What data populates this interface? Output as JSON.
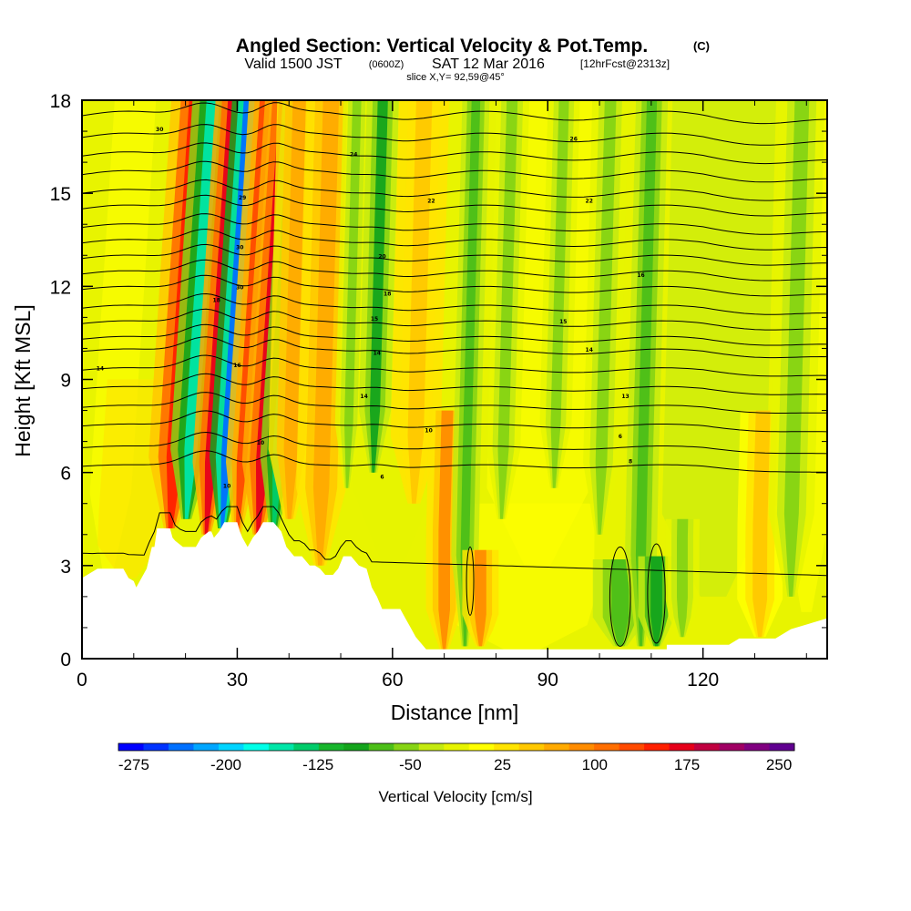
{
  "header": {
    "title": "Angled Section: Vertical Velocity & Pot.Temp.",
    "title_mark": "(C)",
    "valid_prefix": "Valid 1500 JST",
    "valid_zulu": "(0600Z)",
    "valid_date": "SAT 12 Mar 2016",
    "forecast": "[12hrFcst@2313z]",
    "slice": "slice X,Y= 92,59@45°"
  },
  "chart_data": {
    "type": "heatmap",
    "xlabel": "Distance [nm]",
    "ylabel": "Height [Kft MSL]",
    "xlim": [
      0,
      144
    ],
    "ylim": [
      0,
      18
    ],
    "x_ticks": [
      0,
      30,
      60,
      90,
      120
    ],
    "x_tick_labels": [
      "0",
      "30",
      "60",
      "90",
      "120"
    ],
    "y_ticks": [
      0,
      3,
      6,
      9,
      12,
      15,
      18
    ],
    "y_tick_labels": [
      "0",
      "3",
      "6",
      "9",
      "12",
      "15",
      "18"
    ],
    "colorbar": {
      "title": "Vertical Velocity [cm/s]",
      "min": -287.5,
      "max": 262.5,
      "tick_values": [
        -275,
        -200,
        -125,
        -50,
        25,
        100,
        175,
        250
      ],
      "tick_labels": [
        "-275",
        "-200",
        "-125",
        "-50",
        "25",
        "100",
        "175",
        "250"
      ],
      "colors": [
        "#0000ff",
        "#0033ff",
        "#0070ff",
        "#00a6ff",
        "#00d4ff",
        "#00ffe8",
        "#00e6a8",
        "#00cc6a",
        "#17b52c",
        "#14a41c",
        "#4cbf18",
        "#86d414",
        "#c4ea10",
        "#e6f400",
        "#ffff00",
        "#ffe400",
        "#ffc800",
        "#ffaa00",
        "#ff8c00",
        "#ff6e00",
        "#ff4a00",
        "#ff2000",
        "#e6001a",
        "#c00040",
        "#a00064",
        "#800080",
        "#600090"
      ]
    },
    "vertical_velocity_features": [
      {
        "x": 17,
        "top": 18,
        "bottom": 4.2,
        "w": 2.3,
        "value": 160
      },
      {
        "x": 20,
        "top": 18,
        "bottom": 4.5,
        "w": 1.8,
        "value": -160
      },
      {
        "x": 24,
        "top": 18,
        "bottom": 4.0,
        "w": 1.6,
        "value": 170
      },
      {
        "x": 27,
        "top": 18,
        "bottom": 4.2,
        "w": 1.5,
        "value": -240
      },
      {
        "x": 30,
        "top": 18,
        "bottom": 4.0,
        "w": 1.4,
        "value": 120
      },
      {
        "x": 34,
        "top": 18,
        "bottom": 4.0,
        "w": 1.8,
        "value": 170
      },
      {
        "x": 37,
        "top": 18,
        "bottom": 4.2,
        "w": 1.6,
        "value": -130
      },
      {
        "x": 40,
        "top": 18,
        "bottom": 4.5,
        "w": 2.0,
        "value": 60
      },
      {
        "x": 46,
        "top": 18,
        "bottom": 3.0,
        "w": 2.2,
        "value": 60
      },
      {
        "x": 51,
        "top": 18,
        "bottom": 5.5,
        "w": 1.2,
        "value": -50
      },
      {
        "x": 56,
        "top": 18,
        "bottom": 6.0,
        "w": 1.4,
        "value": -90
      },
      {
        "x": 64,
        "top": 18,
        "bottom": 5.0,
        "w": 2.2,
        "value": 55
      },
      {
        "x": 70,
        "top": 8.0,
        "bottom": 0.3,
        "w": 1.6,
        "value": 80
      },
      {
        "x": 74,
        "top": 18,
        "bottom": 0.4,
        "w": 1.2,
        "value": -70
      },
      {
        "x": 77,
        "top": 3.5,
        "bottom": 0.4,
        "w": 1.6,
        "value": 90
      },
      {
        "x": 81,
        "top": 18,
        "bottom": 4.5,
        "w": 1.5,
        "value": -50
      },
      {
        "x": 91,
        "top": 18,
        "bottom": 5.5,
        "w": 1.4,
        "value": -60
      },
      {
        "x": 100,
        "top": 18,
        "bottom": 4.0,
        "w": 1.6,
        "value": -50
      },
      {
        "x": 104,
        "top": 3.2,
        "bottom": 0.4,
        "w": 2.4,
        "value": -70
      },
      {
        "x": 108,
        "top": 18,
        "bottom": 0.4,
        "w": 1.4,
        "value": -80
      },
      {
        "x": 111,
        "top": 3.3,
        "bottom": 0.4,
        "w": 1.6,
        "value": -100
      },
      {
        "x": 116,
        "top": 4.5,
        "bottom": 0.7,
        "w": 1.5,
        "value": -50
      },
      {
        "x": 131,
        "top": 8.0,
        "bottom": 0.7,
        "w": 2.0,
        "value": 50
      },
      {
        "x": 137,
        "top": 18,
        "bottom": 2.0,
        "w": 2.0,
        "value": -45
      }
    ],
    "terrain": [
      [
        0,
        2.6
      ],
      [
        3,
        2.9
      ],
      [
        8,
        2.9
      ],
      [
        9,
        2.6
      ],
      [
        10,
        2.5
      ],
      [
        10.5,
        2.3
      ],
      [
        11.5,
        2.6
      ],
      [
        12.5,
        2.9
      ],
      [
        13.5,
        3.6
      ],
      [
        14,
        3.6
      ],
      [
        14.5,
        4.2
      ],
      [
        17,
        4.2
      ],
      [
        17.5,
        3.9
      ],
      [
        18,
        3.8
      ],
      [
        19.5,
        3.6
      ],
      [
        22,
        3.6
      ],
      [
        23,
        3.9
      ],
      [
        24.5,
        4.1
      ],
      [
        25,
        4.1
      ],
      [
        25.5,
        3.9
      ],
      [
        26.5,
        4.1
      ],
      [
        27.5,
        4.4
      ],
      [
        30,
        4.4
      ],
      [
        30.5,
        4.1
      ],
      [
        31,
        3.9
      ],
      [
        32,
        3.6
      ],
      [
        33,
        3.9
      ],
      [
        34,
        4.1
      ],
      [
        35,
        4.4
      ],
      [
        37,
        4.4
      ],
      [
        38.5,
        4.1
      ],
      [
        39.5,
        3.6
      ],
      [
        41,
        3.3
      ],
      [
        42.5,
        3.3
      ],
      [
        44,
        3.0
      ],
      [
        45,
        3.0
      ],
      [
        46,
        2.9
      ],
      [
        47,
        2.7
      ],
      [
        48.5,
        2.7
      ],
      [
        49.5,
        2.9
      ],
      [
        50.5,
        3.3
      ],
      [
        52,
        3.3
      ],
      [
        53.5,
        3.0
      ],
      [
        55,
        2.9
      ],
      [
        56,
        2.3
      ],
      [
        57,
        2.0
      ],
      [
        58,
        1.6
      ],
      [
        61.5,
        1.6
      ],
      [
        62.5,
        1.3
      ],
      [
        63.5,
        1.0
      ],
      [
        64.5,
        0.7
      ],
      [
        65.5,
        0.5
      ],
      [
        66.5,
        0.3
      ],
      [
        113,
        0.3
      ],
      [
        113,
        0.45
      ],
      [
        118,
        0.45
      ],
      [
        125,
        0.45
      ],
      [
        127,
        0.65
      ],
      [
        133,
        0.65
      ],
      [
        134,
        0.65
      ],
      [
        137,
        0.95
      ],
      [
        144,
        1.3
      ]
    ],
    "isentrope_base_heights": [
      6.2,
      6.8,
      7.5,
      8.1,
      8.7,
      9.3,
      9.9,
      10.3,
      10.8,
      11.3,
      11.9,
      12.4,
      12.9,
      13.4,
      13.9,
      14.5,
      15.0,
      15.6,
      16.2,
      16.8,
      17.5
    ],
    "isentrope_labels": [
      {
        "x": 3.5,
        "y": 9.3,
        "text": "14"
      },
      {
        "x": 15,
        "y": 17.0,
        "text": "30"
      },
      {
        "x": 31,
        "y": 14.8,
        "text": "29"
      },
      {
        "x": 30.5,
        "y": 13.2,
        "text": "30"
      },
      {
        "x": 30.5,
        "y": 11.9,
        "text": "30"
      },
      {
        "x": 26,
        "y": 11.5,
        "text": "18"
      },
      {
        "x": 30,
        "y": 9.4,
        "text": "16"
      },
      {
        "x": 34.5,
        "y": 6.9,
        "text": "10"
      },
      {
        "x": 28,
        "y": 5.5,
        "text": "10"
      },
      {
        "x": 52.5,
        "y": 16.2,
        "text": "24"
      },
      {
        "x": 58,
        "y": 12.9,
        "text": "20"
      },
      {
        "x": 59,
        "y": 11.7,
        "text": "18"
      },
      {
        "x": 56.5,
        "y": 10.9,
        "text": "15"
      },
      {
        "x": 57,
        "y": 9.8,
        "text": "14"
      },
      {
        "x": 54.5,
        "y": 8.4,
        "text": "14"
      },
      {
        "x": 67.5,
        "y": 14.7,
        "text": "22"
      },
      {
        "x": 67,
        "y": 7.3,
        "text": "10"
      },
      {
        "x": 58,
        "y": 5.8,
        "text": "6"
      },
      {
        "x": 95,
        "y": 16.7,
        "text": "26"
      },
      {
        "x": 98,
        "y": 14.7,
        "text": "22"
      },
      {
        "x": 108,
        "y": 12.3,
        "text": "16"
      },
      {
        "x": 93,
        "y": 10.8,
        "text": "15"
      },
      {
        "x": 98,
        "y": 9.9,
        "text": "14"
      },
      {
        "x": 105,
        "y": 8.4,
        "text": "13"
      },
      {
        "x": 104,
        "y": 7.1,
        "text": "6"
      },
      {
        "x": 106,
        "y": 6.3,
        "text": "8"
      }
    ]
  }
}
